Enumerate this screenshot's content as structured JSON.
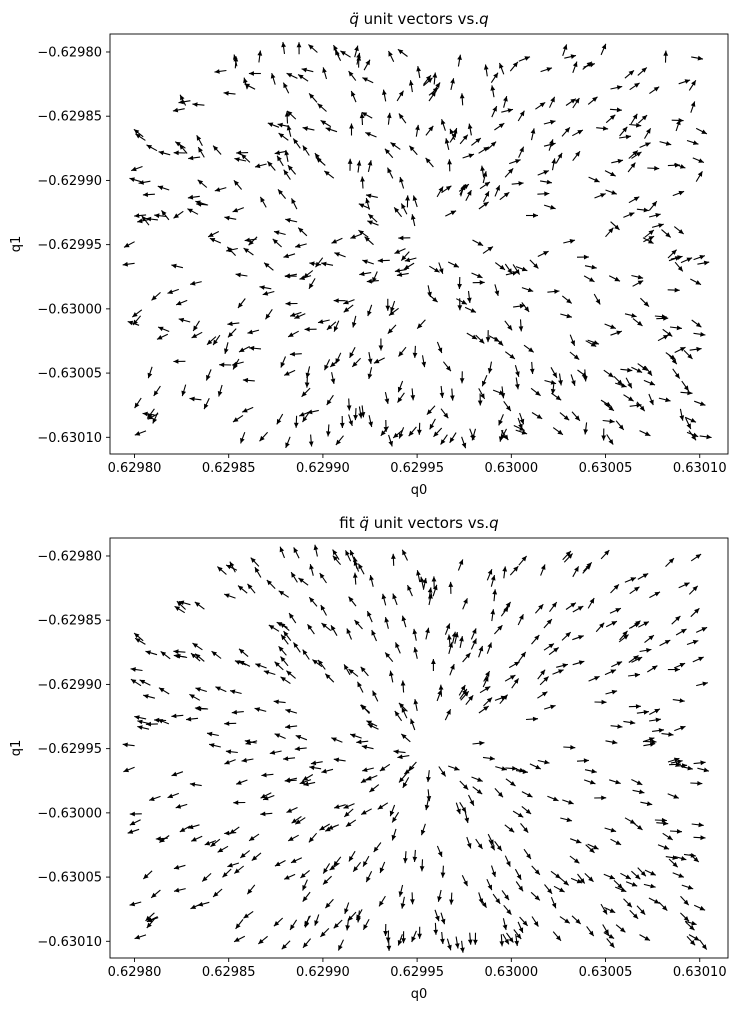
{
  "chart_data": [
    {
      "type": "quiver",
      "title": "q̈ unit vectors vs.q",
      "title_parts": {
        "prefix": "",
        "symbol": "q̈",
        "middle": " unit vectors vs.",
        "end": "q"
      },
      "xlabel": "q0",
      "ylabel": "q1",
      "xlim": [
        0.629787,
        0.630115
      ],
      "ylim": [
        -0.630113,
        -0.629786
      ],
      "xticks": [
        0.6298,
        0.62985,
        0.6299,
        0.62995,
        0.63,
        0.63005,
        0.6301
      ],
      "xtick_labels": [
        "0.62980",
        "0.62985",
        "0.62990",
        "0.62995",
        "0.63000",
        "0.63005",
        "0.63010"
      ],
      "yticks": [
        -0.6298,
        -0.62985,
        -0.6299,
        -0.62995,
        -0.63,
        -0.63005,
        -0.6301
      ],
      "ytick_labels": [
        "−0.62980",
        "−0.62985",
        "−0.62990",
        "−0.62995",
        "−0.63000",
        "−0.63005",
        "−0.63010"
      ],
      "vector_field": {
        "center": [
          0.629955,
          -0.629953
        ],
        "description": "unit vectors roughly pointing away from center with noise"
      }
    },
    {
      "type": "quiver",
      "title": "fit q̈ unit vectors vs.q",
      "title_parts": {
        "prefix": "fit ",
        "symbol": "q̈",
        "middle": " unit vectors vs.",
        "end": "q"
      },
      "xlabel": "q0",
      "ylabel": "q1",
      "xlim": [
        0.629787,
        0.630115
      ],
      "ylim": [
        -0.630113,
        -0.629786
      ],
      "xticks": [
        0.6298,
        0.62985,
        0.6299,
        0.62995,
        0.63,
        0.63005,
        0.6301
      ],
      "xtick_labels": [
        "0.62980",
        "0.62985",
        "0.62990",
        "0.62995",
        "0.63000",
        "0.63005",
        "0.63010"
      ],
      "yticks": [
        -0.6298,
        -0.62985,
        -0.6299,
        -0.62995,
        -0.63,
        -0.63005,
        -0.6301
      ],
      "ytick_labels": [
        "−0.62980",
        "−0.62985",
        "−0.62990",
        "−0.62995",
        "−0.63000",
        "−0.63005",
        "−0.63010"
      ],
      "vector_field": {
        "center": [
          0.629955,
          -0.629953
        ],
        "description": "unit vectors pointing radially away from center"
      }
    }
  ]
}
